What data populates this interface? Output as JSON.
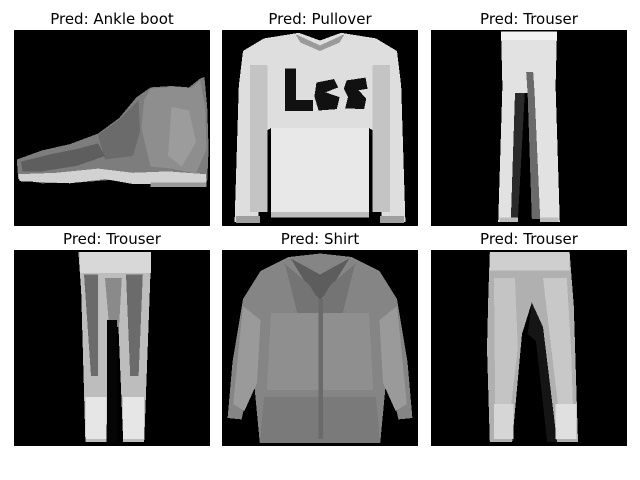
{
  "figure": {
    "panels": [
      {
        "title": "Pred: Ankle boot",
        "depicts": "ankle-boot"
      },
      {
        "title": "Pred: Pullover",
        "depicts": "pullover"
      },
      {
        "title": "Pred: Trouser",
        "depicts": "trouser"
      },
      {
        "title": "Pred: Trouser",
        "depicts": "trouser"
      },
      {
        "title": "Pred: Shirt",
        "depicts": "shirt"
      },
      {
        "title": "Pred: Trouser",
        "depicts": "trouser"
      }
    ]
  }
}
